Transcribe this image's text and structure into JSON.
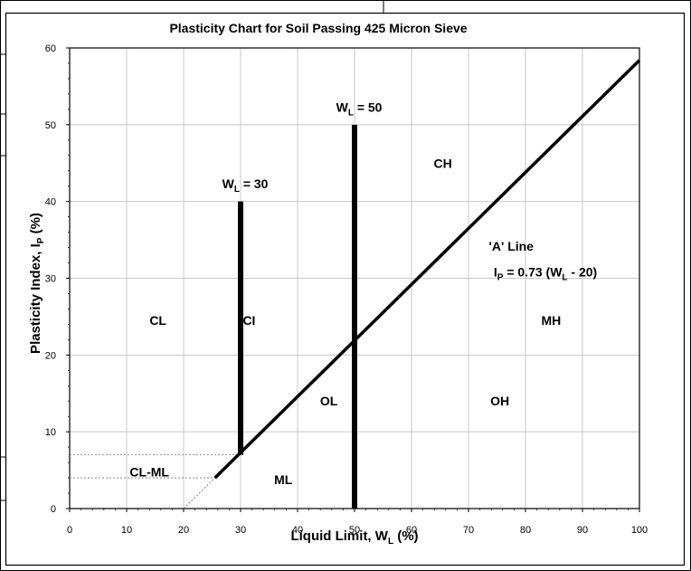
{
  "chart_data": {
    "type": "line",
    "title": "Plasticity Chart for Soil Passing 425 Micron Sieve",
    "xlabel": {
      "main": "Liquid Limit, W",
      "sub": "L",
      "tail": " (%)"
    },
    "ylabel": {
      "main": "Plasticity Index, I",
      "sub": "P",
      "tail": "  (%)"
    },
    "xlim": [
      0,
      100
    ],
    "ylim": [
      0,
      60
    ],
    "x_ticks": [
      0,
      10,
      20,
      30,
      40,
      50,
      60,
      70,
      80,
      90,
      100
    ],
    "y_ticks": [
      0,
      10,
      20,
      30,
      40,
      50,
      60
    ],
    "grid": true,
    "a_line": {
      "x": [
        25.5,
        100
      ],
      "y": [
        4.0,
        58.4
      ],
      "dashed_extension": {
        "x": [
          20,
          25.5
        ],
        "y": [
          0,
          4.0
        ]
      }
    },
    "vertical_lines": [
      {
        "x": 30,
        "y": [
          7,
          40
        ]
      },
      {
        "x": 50,
        "y": [
          0,
          50
        ]
      }
    ],
    "guide_lines": [
      {
        "y": 7,
        "x": [
          0,
          30
        ]
      },
      {
        "y": 4,
        "x": [
          0,
          25.5
        ]
      }
    ],
    "annotations": {
      "wl30": {
        "main": "W",
        "sub": "L",
        "tail": " = 30",
        "x": 30.8,
        "y": 42.3
      },
      "wl50": {
        "main": "W",
        "sub": "L",
        "tail": " = 50",
        "x": 50.8,
        "y": 52.3
      },
      "a_line_title": {
        "text": "'A' Line",
        "x": 77.5,
        "y": 34.2
      },
      "a_line_eq": {
        "main": "I",
        "sub": "P",
        "tail": " = 0.73 (W",
        "sub2": "L",
        "tail2": " - 20)",
        "x": 83.5,
        "y": 30.8
      }
    },
    "zones": [
      {
        "label": "CL",
        "x": 15.5,
        "y": 24.5
      },
      {
        "label": "CI",
        "x": 31.5,
        "y": 24.5
      },
      {
        "label": "CH",
        "x": 65.5,
        "y": 45
      },
      {
        "label": "MH",
        "x": 84.5,
        "y": 24.5
      },
      {
        "label": "OL",
        "x": 45.5,
        "y": 14
      },
      {
        "label": "OH",
        "x": 75.5,
        "y": 14
      },
      {
        "label": "ML",
        "x": 37.5,
        "y": 3.8
      },
      {
        "label": "CL-ML",
        "x": 14,
        "y": 4.8
      }
    ]
  }
}
